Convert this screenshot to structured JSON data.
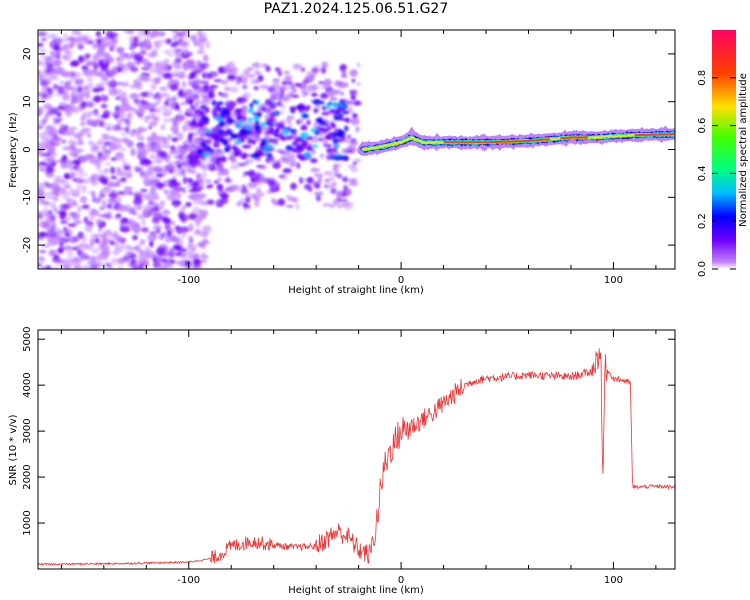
{
  "title": "PAZ1.2024.125.06.51.G27",
  "chart_data": [
    {
      "type": "heatmap",
      "xlabel": "Height of straight line (km)",
      "ylabel": "Frequency (Hz)",
      "xlim": [
        -171,
        129
      ],
      "ylim": [
        -25,
        25
      ],
      "x_ticks": [
        -100,
        0,
        100
      ],
      "y_ticks": [
        -20,
        -10,
        0,
        10,
        20
      ],
      "x_tick_labels": [
        "-100",
        "0",
        "100"
      ],
      "y_tick_labels": [
        "-20",
        "-10",
        "0",
        "10",
        "20"
      ],
      "colorbar": {
        "label": "Normalized spectral amplitude",
        "range": [
          0,
          1
        ],
        "ticks": [
          0.0,
          0.2,
          0.4,
          0.6,
          0.8
        ],
        "tick_labels": [
          "0.0",
          "0.2",
          "0.4",
          "0.6",
          "0.8"
        ],
        "colors": [
          "#ffffff",
          "#c080ff",
          "#7000ff",
          "#0000ff",
          "#00c0ff",
          "#00ff80",
          "#40ff00",
          "#ffe000",
          "#ff4000",
          "#ff0060"
        ]
      },
      "ridge": {
        "x": [
          -18,
          -10,
          0,
          5,
          10,
          20,
          40,
          60,
          80,
          92,
          100,
          110,
          129
        ],
        "y": [
          0,
          0.5,
          1.5,
          2.5,
          1.5,
          1.5,
          1.5,
          1.8,
          2.5,
          2.5,
          2.8,
          3,
          3.2
        ]
      },
      "grid": false
    },
    {
      "type": "line",
      "xlabel": "Height of straight line (km)",
      "ylabel": "SNR (10 * v/v)",
      "xlim": [
        -171,
        129
      ],
      "ylim": [
        0,
        5200
      ],
      "x_ticks": [
        -100,
        0,
        100
      ],
      "y_ticks": [
        1000,
        2000,
        3000,
        4000,
        5000
      ],
      "x_tick_labels": [
        "-100",
        "0",
        "100"
      ],
      "y_tick_labels": [
        "1000",
        "2000",
        "3000",
        "4000",
        "5000"
      ],
      "series": [
        {
          "color": "#ee3333",
          "x": [
            -171,
            -130,
            -100,
            -90,
            -85,
            -80,
            -70,
            -60,
            -50,
            -40,
            -35,
            -30,
            -25,
            -20,
            -15,
            -12,
            -10,
            -8,
            -5,
            0,
            5,
            10,
            15,
            20,
            25,
            30,
            35,
            40,
            50,
            60,
            70,
            80,
            90,
            94,
            95,
            96,
            100,
            105,
            108,
            109,
            110,
            120,
            129
          ],
          "y": [
            100,
            120,
            150,
            220,
            320,
            500,
            600,
            520,
            470,
            500,
            650,
            820,
            700,
            420,
            300,
            800,
            1600,
            2200,
            2600,
            3000,
            3100,
            3250,
            3400,
            3600,
            3800,
            4000,
            4100,
            4150,
            4180,
            4220,
            4200,
            4180,
            4300,
            4800,
            1800,
            4400,
            4150,
            4100,
            4050,
            1800,
            1780,
            1800,
            1780
          ]
        }
      ],
      "grid": false
    }
  ]
}
